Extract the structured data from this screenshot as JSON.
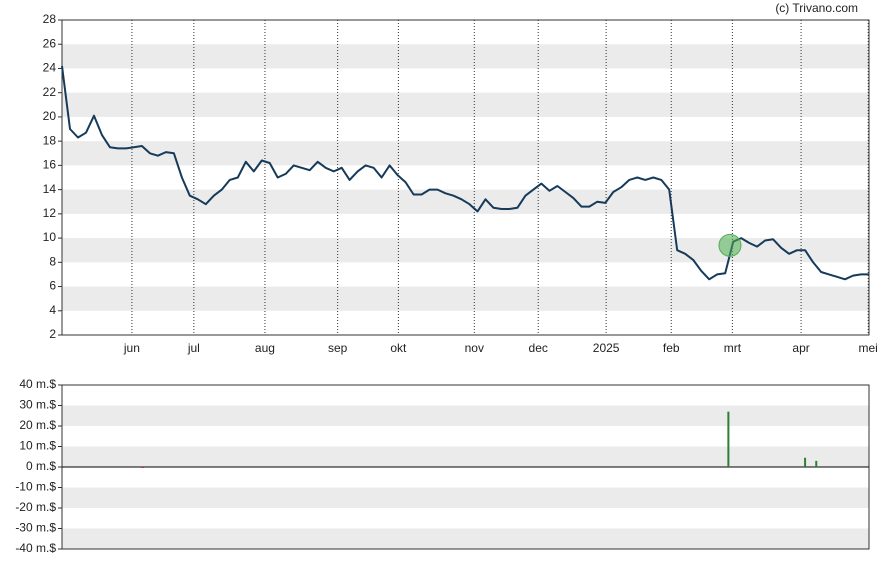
{
  "chart_data": [
    {
      "type": "line",
      "credit": "(c) Trivano.com",
      "series": [
        {
          "color": "#163a5a",
          "values": [
            24.2,
            19,
            18.3,
            18.7,
            20.1,
            18.5,
            17.5,
            17.4,
            17.4,
            17.5,
            17.6,
            17,
            16.8,
            17.1,
            17,
            15,
            13.5,
            13.2,
            12.8,
            13.5,
            14,
            14.8,
            15,
            16.3,
            15.5,
            16.4,
            16.2,
            15,
            15.3,
            16,
            15.8,
            15.6,
            16.3,
            15.8,
            15.5,
            15.8,
            14.8,
            15.5,
            16,
            15.8,
            15,
            16,
            15.2,
            14.6,
            13.6,
            13.6,
            14,
            14,
            13.7,
            13.5,
            13.2,
            12.8,
            12.2,
            13.2,
            12.5,
            12.4,
            12.4,
            12.5,
            13.5,
            14,
            14.5,
            13.9,
            14.3,
            13.8,
            13.3,
            12.6,
            12.6,
            13,
            12.9,
            13.8,
            14.2,
            14.8,
            15,
            14.8,
            15,
            14.8,
            14,
            9,
            8.7,
            8.2,
            7.3,
            6.6,
            7,
            7.1,
            9.7,
            10,
            9.6,
            9.3,
            9.8,
            9.9,
            9.2,
            8.7,
            9,
            9,
            8,
            7.2,
            7,
            6.8,
            6.6,
            6.9,
            7,
            7
          ]
        }
      ],
      "highlight": {
        "x": 83.6,
        "y": 9.4,
        "color": "#4caf50"
      },
      "xlim": [
        0,
        101
      ],
      "xticks": [
        {
          "value": 8.75,
          "label": "jun"
        },
        {
          "value": 16.5,
          "label": "jul"
        },
        {
          "value": 25.4,
          "label": "aug"
        },
        {
          "value": 34.5,
          "label": "sep"
        },
        {
          "value": 42.1,
          "label": "okt"
        },
        {
          "value": 51.6,
          "label": "nov"
        },
        {
          "value": 59.6,
          "label": "dec"
        },
        {
          "value": 68.1,
          "label": "2025"
        },
        {
          "value": 76.25,
          "label": "feb"
        },
        {
          "value": 83.9,
          "label": "mrt"
        },
        {
          "value": 92.5,
          "label": "apr"
        },
        {
          "value": 100.9,
          "label": "mei"
        }
      ],
      "ylim": [
        2,
        28
      ],
      "yticks": [
        2,
        4,
        6,
        8,
        10,
        12,
        14,
        16,
        18,
        20,
        22,
        24,
        26,
        28
      ]
    },
    {
      "type": "bar",
      "x": [
        10.1,
        83.4,
        93,
        94.4
      ],
      "values": [
        -0.4,
        27,
        4.5,
        3
      ],
      "colors": [
        "#c62828",
        "#2e7d32",
        "#2e7d32",
        "#2e7d32"
      ],
      "xlim": [
        0,
        101
      ],
      "ylim": [
        -40,
        40
      ],
      "yticks": [
        {
          "value": -40,
          "label": "-40 m.$"
        },
        {
          "value": -30,
          "label": "-30 m.$"
        },
        {
          "value": -20,
          "label": "-20 m.$"
        },
        {
          "value": -10,
          "label": "-10 m.$"
        },
        {
          "value": 0,
          "label": "0 m.$"
        },
        {
          "value": 10,
          "label": "10 m.$"
        },
        {
          "value": 20,
          "label": "20 m.$"
        },
        {
          "value": 30,
          "label": "30 m.$"
        },
        {
          "value": 40,
          "label": "40 m.$"
        }
      ]
    }
  ]
}
